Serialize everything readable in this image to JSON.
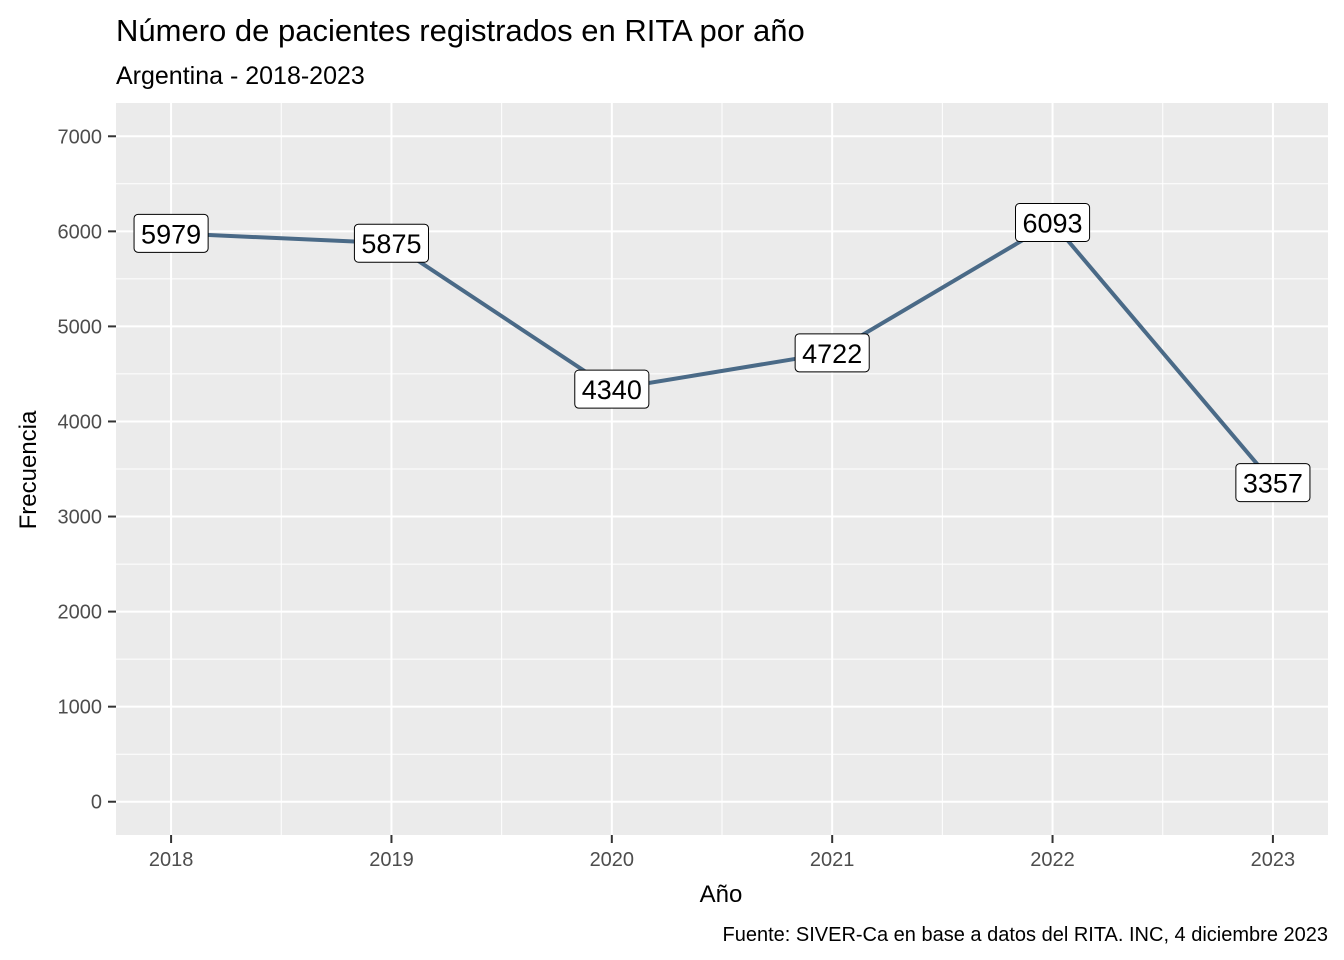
{
  "chart_data": {
    "type": "line",
    "title": "Número de pacientes registrados en RITA por año",
    "subtitle": "Argentina - 2018-2023",
    "xlabel": "Año",
    "ylabel": "Frecuencia",
    "caption": "Fuente: SIVER-Ca en base a datos del RITA. INC, 4 diciembre 2023",
    "x": [
      2018,
      2019,
      2020,
      2021,
      2022,
      2023
    ],
    "values": [
      5979,
      5875,
      4340,
      4722,
      6093,
      3357
    ],
    "data_labels": [
      "5979",
      "5875",
      "4340",
      "4722",
      "6093",
      "3357"
    ],
    "x_tick_labels": [
      "2018",
      "2019",
      "2020",
      "2021",
      "2022",
      "2023"
    ],
    "y_ticks": [
      0,
      1000,
      2000,
      3000,
      4000,
      5000,
      6000,
      7000
    ],
    "y_tick_labels": [
      "0",
      "1000",
      "2000",
      "3000",
      "4000",
      "5000",
      "6000",
      "7000"
    ],
    "xlim": [
      2017.75,
      2023.25
    ],
    "ylim": [
      -350,
      7350
    ],
    "grid": true,
    "legend": "none",
    "colors": {
      "line": "#4a6a87",
      "panel_background": "#ebebeb",
      "grid": "#ffffff",
      "label_fill": "#ffffff",
      "label_border": "#000000"
    }
  }
}
